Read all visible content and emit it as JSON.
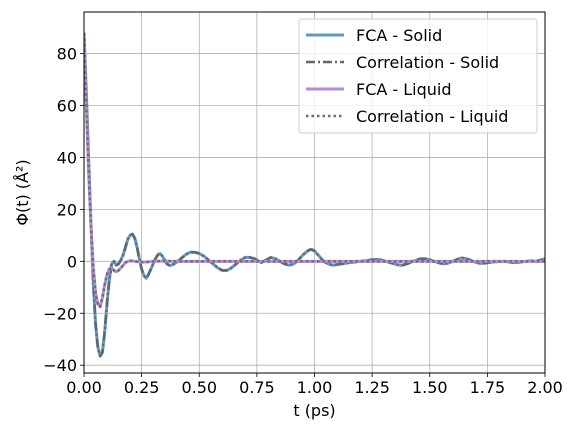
{
  "chart_data": {
    "type": "line",
    "xlabel": "t (ps)",
    "ylabel": "Φ(t) (Å²)",
    "xlim": [
      0,
      2.0
    ],
    "ylim": [
      -43,
      96
    ],
    "xticks": [
      0.0,
      0.25,
      0.5,
      0.75,
      1.0,
      1.25,
      1.5,
      1.75,
      2.0
    ],
    "xtick_labels": [
      "0.00",
      "0.25",
      "0.50",
      "0.75",
      "1.00",
      "1.25",
      "1.50",
      "1.75",
      "2.00"
    ],
    "yticks": [
      -40,
      -20,
      0,
      20,
      40,
      60,
      80
    ],
    "ytick_labels": [
      "−40",
      "−20",
      "0",
      "20",
      "40",
      "60",
      "80"
    ],
    "grid": true,
    "legend_position": "top-right",
    "series": [
      {
        "name": "FCA - Solid",
        "color": "#5b9bc8",
        "style": "solid",
        "points": [
          [
            0.0,
            88
          ],
          [
            0.01,
            65
          ],
          [
            0.02,
            40
          ],
          [
            0.03,
            15
          ],
          [
            0.04,
            -8
          ],
          [
            0.05,
            -24
          ],
          [
            0.06,
            -33
          ],
          [
            0.07,
            -36.5
          ],
          [
            0.08,
            -35
          ],
          [
            0.09,
            -27
          ],
          [
            0.1,
            -16
          ],
          [
            0.11,
            -7
          ],
          [
            0.12,
            -1
          ],
          [
            0.13,
            0
          ],
          [
            0.14,
            -1.5
          ],
          [
            0.15,
            -1
          ],
          [
            0.16,
            0.5
          ],
          [
            0.17,
            2.5
          ],
          [
            0.18,
            5.5
          ],
          [
            0.19,
            8.5
          ],
          [
            0.2,
            10
          ],
          [
            0.21,
            10.5
          ],
          [
            0.22,
            9
          ],
          [
            0.23,
            5.5
          ],
          [
            0.24,
            1
          ],
          [
            0.25,
            -3
          ],
          [
            0.26,
            -5.5
          ],
          [
            0.27,
            -6.5
          ],
          [
            0.28,
            -5
          ],
          [
            0.29,
            -3
          ],
          [
            0.3,
            -1
          ],
          [
            0.31,
            1
          ],
          [
            0.32,
            2.5
          ],
          [
            0.33,
            3
          ],
          [
            0.34,
            2
          ],
          [
            0.35,
            0.5
          ],
          [
            0.36,
            -1
          ],
          [
            0.37,
            -1.5
          ],
          [
            0.38,
            -1.5
          ],
          [
            0.39,
            -1
          ],
          [
            0.4,
            -0.5
          ],
          [
            0.42,
            1
          ],
          [
            0.44,
            2.5
          ],
          [
            0.46,
            3.5
          ],
          [
            0.48,
            3.5
          ],
          [
            0.5,
            3
          ],
          [
            0.52,
            2
          ],
          [
            0.54,
            0.5
          ],
          [
            0.56,
            -1
          ],
          [
            0.58,
            -2.5
          ],
          [
            0.6,
            -3.5
          ],
          [
            0.62,
            -3.5
          ],
          [
            0.64,
            -2.5
          ],
          [
            0.66,
            -1
          ],
          [
            0.68,
            0.5
          ],
          [
            0.7,
            1.5
          ],
          [
            0.72,
            1.5
          ],
          [
            0.74,
            1
          ],
          [
            0.76,
            0
          ],
          [
            0.77,
            -0.5
          ],
          [
            0.79,
            0.5
          ],
          [
            0.81,
            1.5
          ],
          [
            0.83,
            1
          ],
          [
            0.85,
            0
          ],
          [
            0.87,
            -1
          ],
          [
            0.89,
            -1.5
          ],
          [
            0.91,
            -1
          ],
          [
            0.93,
            0.5
          ],
          [
            0.95,
            2.5
          ],
          [
            0.97,
            4
          ],
          [
            0.98,
            4.5
          ],
          [
            0.99,
            4.5
          ],
          [
            1.0,
            4
          ],
          [
            1.02,
            2
          ],
          [
            1.04,
            0
          ],
          [
            1.06,
            -1
          ],
          [
            1.08,
            -1.5
          ],
          [
            1.1,
            -1.2
          ],
          [
            1.12,
            -1
          ],
          [
            1.15,
            -0.5
          ],
          [
            1.18,
            -0.2
          ],
          [
            1.22,
            0.2
          ],
          [
            1.25,
            0.6
          ],
          [
            1.28,
            0.7
          ],
          [
            1.3,
            0.3
          ],
          [
            1.32,
            -0.3
          ],
          [
            1.34,
            -0.8
          ],
          [
            1.36,
            -1.3
          ],
          [
            1.38,
            -1.5
          ],
          [
            1.4,
            -1
          ],
          [
            1.42,
            -0.3
          ],
          [
            1.44,
            0.4
          ],
          [
            1.46,
            1
          ],
          [
            1.48,
            1
          ],
          [
            1.5,
            0.6
          ],
          [
            1.52,
            0
          ],
          [
            1.54,
            -0.6
          ],
          [
            1.56,
            -1
          ],
          [
            1.58,
            -0.7
          ],
          [
            1.6,
            0
          ],
          [
            1.62,
            0.8
          ],
          [
            1.64,
            1.3
          ],
          [
            1.66,
            1
          ],
          [
            1.68,
            0.3
          ],
          [
            1.7,
            -0.4
          ],
          [
            1.72,
            -0.8
          ],
          [
            1.74,
            -0.7
          ],
          [
            1.76,
            -0.4
          ],
          [
            1.78,
            -0.2
          ],
          [
            1.8,
            -0.1
          ],
          [
            1.82,
            0
          ],
          [
            1.84,
            -0.2
          ],
          [
            1.86,
            -0.5
          ],
          [
            1.88,
            -0.4
          ],
          [
            1.9,
            -0.2
          ],
          [
            1.92,
            0
          ],
          [
            1.94,
            0.2
          ],
          [
            1.96,
            0
          ],
          [
            1.98,
            0.5
          ],
          [
            2.0,
            1
          ]
        ]
      },
      {
        "name": "Correlation - Solid",
        "color": "#666666",
        "style": "dashdot",
        "points": [
          [
            0.0,
            88
          ],
          [
            0.01,
            65
          ],
          [
            0.02,
            40
          ],
          [
            0.03,
            15
          ],
          [
            0.04,
            -8
          ],
          [
            0.05,
            -24
          ],
          [
            0.06,
            -33
          ],
          [
            0.07,
            -36.5
          ],
          [
            0.08,
            -35
          ],
          [
            0.09,
            -27
          ],
          [
            0.1,
            -16
          ],
          [
            0.11,
            -7
          ],
          [
            0.12,
            -1
          ],
          [
            0.13,
            0
          ],
          [
            0.14,
            -1.5
          ],
          [
            0.15,
            -1
          ],
          [
            0.16,
            0.5
          ],
          [
            0.17,
            2.5
          ],
          [
            0.18,
            5.5
          ],
          [
            0.19,
            8.5
          ],
          [
            0.2,
            10
          ],
          [
            0.21,
            10.5
          ],
          [
            0.22,
            9
          ],
          [
            0.23,
            5.5
          ],
          [
            0.24,
            1
          ],
          [
            0.25,
            -3
          ],
          [
            0.26,
            -5.5
          ],
          [
            0.27,
            -6.5
          ],
          [
            0.28,
            -5
          ],
          [
            0.29,
            -3
          ],
          [
            0.3,
            -1
          ],
          [
            0.31,
            1
          ],
          [
            0.32,
            2.5
          ],
          [
            0.33,
            3
          ],
          [
            0.34,
            2
          ],
          [
            0.35,
            0.5
          ],
          [
            0.36,
            -1
          ],
          [
            0.37,
            -1.5
          ],
          [
            0.38,
            -1.5
          ],
          [
            0.39,
            -1
          ],
          [
            0.4,
            -0.5
          ],
          [
            0.42,
            1
          ],
          [
            0.44,
            2.5
          ],
          [
            0.46,
            3.5
          ],
          [
            0.48,
            3.5
          ],
          [
            0.5,
            3
          ],
          [
            0.52,
            2
          ],
          [
            0.54,
            0.5
          ],
          [
            0.56,
            -1
          ],
          [
            0.58,
            -2.5
          ],
          [
            0.6,
            -3.5
          ],
          [
            0.62,
            -3.5
          ],
          [
            0.64,
            -2.5
          ],
          [
            0.66,
            -1
          ],
          [
            0.68,
            0.5
          ],
          [
            0.7,
            1.5
          ],
          [
            0.72,
            1.5
          ],
          [
            0.74,
            1
          ],
          [
            0.76,
            0
          ],
          [
            0.77,
            -0.5
          ],
          [
            0.79,
            0.5
          ],
          [
            0.81,
            1.5
          ],
          [
            0.83,
            1
          ],
          [
            0.85,
            0
          ],
          [
            0.87,
            -1
          ],
          [
            0.89,
            -1.5
          ],
          [
            0.91,
            -1
          ],
          [
            0.93,
            0.5
          ],
          [
            0.95,
            2.5
          ],
          [
            0.97,
            4
          ],
          [
            0.98,
            4.5
          ],
          [
            0.99,
            4.5
          ],
          [
            1.0,
            4
          ],
          [
            1.02,
            2
          ],
          [
            1.04,
            0
          ],
          [
            1.06,
            -1
          ],
          [
            1.08,
            -1.5
          ],
          [
            1.1,
            -1.2
          ],
          [
            1.12,
            -1
          ],
          [
            1.15,
            -0.5
          ],
          [
            1.18,
            -0.2
          ],
          [
            1.22,
            0.2
          ],
          [
            1.25,
            0.6
          ],
          [
            1.28,
            0.7
          ],
          [
            1.3,
            0.3
          ],
          [
            1.32,
            -0.3
          ],
          [
            1.34,
            -0.8
          ],
          [
            1.36,
            -1.3
          ],
          [
            1.38,
            -1.5
          ],
          [
            1.4,
            -1
          ],
          [
            1.42,
            -0.3
          ],
          [
            1.44,
            0.4
          ],
          [
            1.46,
            1
          ],
          [
            1.48,
            1
          ],
          [
            1.5,
            0.6
          ],
          [
            1.52,
            0
          ],
          [
            1.54,
            -0.6
          ],
          [
            1.56,
            -1
          ],
          [
            1.58,
            -0.7
          ],
          [
            1.6,
            0
          ],
          [
            1.62,
            0.8
          ],
          [
            1.64,
            1.3
          ],
          [
            1.66,
            1
          ],
          [
            1.68,
            0.3
          ],
          [
            1.7,
            -0.4
          ],
          [
            1.72,
            -0.8
          ],
          [
            1.74,
            -0.7
          ],
          [
            1.76,
            -0.4
          ],
          [
            1.78,
            -0.2
          ],
          [
            1.8,
            -0.1
          ],
          [
            1.82,
            0
          ],
          [
            1.84,
            -0.2
          ],
          [
            1.86,
            -0.5
          ],
          [
            1.88,
            -0.4
          ],
          [
            1.9,
            -0.2
          ],
          [
            1.92,
            0
          ],
          [
            1.94,
            0.2
          ],
          [
            1.96,
            0
          ],
          [
            1.98,
            0.5
          ],
          [
            2.0,
            1
          ]
        ]
      },
      {
        "name": "FCA - Liquid",
        "color": "#b28cd6",
        "style": "solid",
        "points": [
          [
            0.0,
            88
          ],
          [
            0.01,
            60
          ],
          [
            0.02,
            35
          ],
          [
            0.03,
            14
          ],
          [
            0.04,
            -2
          ],
          [
            0.05,
            -12
          ],
          [
            0.06,
            -16.5
          ],
          [
            0.07,
            -17.5
          ],
          [
            0.08,
            -14
          ],
          [
            0.09,
            -9
          ],
          [
            0.1,
            -5
          ],
          [
            0.11,
            -3
          ],
          [
            0.12,
            -2.5
          ],
          [
            0.13,
            -3.5
          ],
          [
            0.14,
            -4
          ],
          [
            0.15,
            -3.5
          ],
          [
            0.16,
            -2.5
          ],
          [
            0.17,
            -1.5
          ],
          [
            0.18,
            -0.5
          ],
          [
            0.19,
            0
          ],
          [
            0.2,
            0.2
          ],
          [
            0.22,
            0
          ],
          [
            0.25,
            -0.3
          ],
          [
            0.28,
            -0.2
          ],
          [
            0.3,
            0
          ],
          [
            0.35,
            0.1
          ],
          [
            0.4,
            0
          ],
          [
            0.5,
            0
          ],
          [
            0.6,
            0
          ],
          [
            0.8,
            0
          ],
          [
            1.0,
            0
          ],
          [
            1.2,
            0
          ],
          [
            1.4,
            0
          ],
          [
            1.6,
            0
          ],
          [
            1.8,
            0
          ],
          [
            2.0,
            0
          ]
        ]
      },
      {
        "name": "Correlation - Liquid",
        "color": "#6e6e6e",
        "style": "dotted",
        "points": [
          [
            0.0,
            88
          ],
          [
            0.01,
            60
          ],
          [
            0.02,
            35
          ],
          [
            0.03,
            14
          ],
          [
            0.04,
            -2
          ],
          [
            0.05,
            -12
          ],
          [
            0.06,
            -16.5
          ],
          [
            0.07,
            -17.5
          ],
          [
            0.08,
            -14
          ],
          [
            0.09,
            -9
          ],
          [
            0.1,
            -5
          ],
          [
            0.11,
            -3
          ],
          [
            0.12,
            -2.5
          ],
          [
            0.13,
            -3.5
          ],
          [
            0.14,
            -4
          ],
          [
            0.15,
            -3.5
          ],
          [
            0.16,
            -2.5
          ],
          [
            0.17,
            -1.5
          ],
          [
            0.18,
            -0.5
          ],
          [
            0.19,
            0
          ],
          [
            0.2,
            0.2
          ],
          [
            0.22,
            0
          ],
          [
            0.25,
            -0.3
          ],
          [
            0.28,
            -0.2
          ],
          [
            0.3,
            0
          ],
          [
            0.35,
            0.1
          ],
          [
            0.4,
            0
          ],
          [
            0.5,
            0
          ],
          [
            0.6,
            0
          ],
          [
            0.8,
            0
          ],
          [
            1.0,
            0
          ],
          [
            1.2,
            0
          ],
          [
            1.4,
            0
          ],
          [
            1.6,
            0
          ],
          [
            1.8,
            0
          ],
          [
            2.0,
            0
          ]
        ]
      }
    ]
  }
}
